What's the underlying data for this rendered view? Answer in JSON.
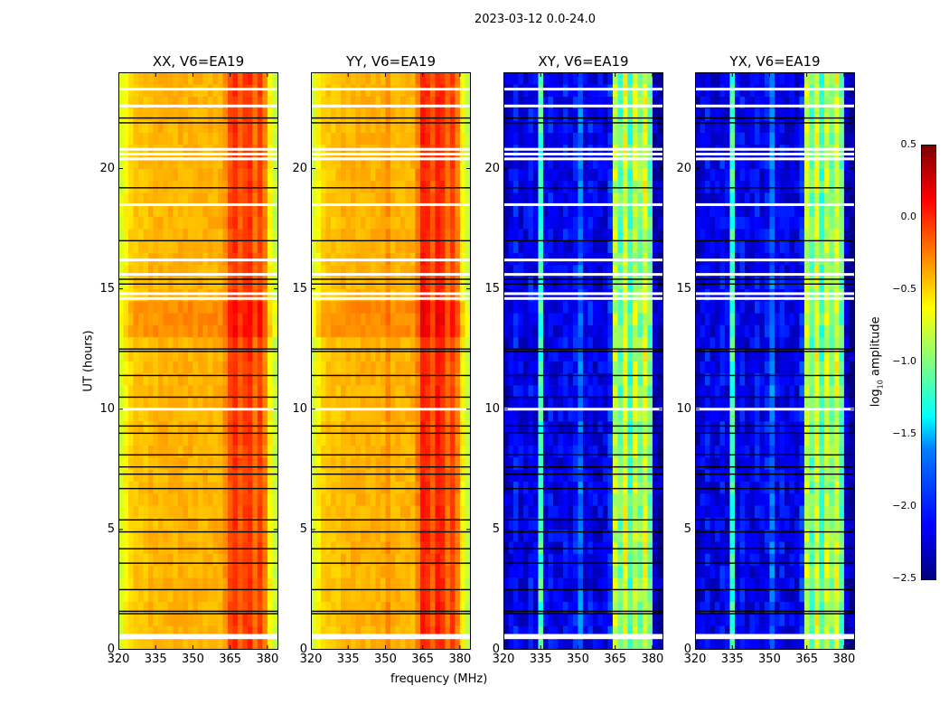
{
  "figure_title": "2023-03-12 0.0-24.0",
  "chart_data": {
    "type": "heatmap",
    "title": "2023-03-12 0.0-24.0",
    "xlabel": "frequency (MHz)",
    "ylabel": "UT (hours)",
    "xlim": [
      320,
      384.4
    ],
    "ylim": [
      0,
      24
    ],
    "xticks": [
      "320",
      "335",
      "350",
      "365",
      "380"
    ],
    "yticks": [
      "0",
      "5",
      "10",
      "15",
      "20"
    ],
    "freq_bin_start": 320,
    "freq_bin_width": 2,
    "time_bin_width": 0.5,
    "colorbar": {
      "label": "log10 amplitude",
      "label_main": "log",
      "label_sub": "10",
      "label_rest": " amplitude",
      "range": [
        -2.5,
        0.5
      ],
      "ticks": [
        "0.5",
        "0.0",
        "−0.5",
        "−1.0",
        "−1.5",
        "−2.0",
        "−2.5"
      ],
      "colormap": "jet"
    },
    "flagged_white_hours": [
      0.5,
      0.6,
      10.0,
      14.6,
      14.8,
      15.6,
      16.2,
      18.5,
      20.4,
      20.6,
      20.8,
      22.6,
      23.3
    ],
    "black_line_hours": [
      1.5,
      1.6,
      2.5,
      3.6,
      4.2,
      4.9,
      5.4,
      6.7,
      7.3,
      7.6,
      8.1,
      9.0,
      9.3,
      10.5,
      11.4,
      12.4,
      12.5,
      15.2,
      15.4,
      17.0,
      19.2,
      21.9,
      22.1
    ],
    "panels": [
      {
        "title": "XX, V6=EA19",
        "profile": [
          -0.75,
          -0.6,
          -0.5,
          -0.45,
          -0.45,
          -0.45,
          -0.4,
          -0.42,
          -0.4,
          -0.4,
          -0.4,
          -0.4,
          -0.4,
          -0.4,
          -0.4,
          -0.4,
          -0.4,
          -0.4,
          -0.4,
          -0.4,
          -0.4,
          -0.3,
          -0.1,
          0.0,
          -0.15,
          -0.05,
          0.0,
          -0.2,
          -0.05,
          -0.25,
          -0.6,
          -0.8
        ]
      },
      {
        "title": "YY, V6=EA19",
        "profile": [
          -0.75,
          -0.6,
          -0.5,
          -0.45,
          -0.45,
          -0.45,
          -0.4,
          -0.42,
          -0.4,
          -0.4,
          -0.4,
          -0.4,
          -0.4,
          -0.4,
          -0.4,
          -0.3,
          -0.4,
          -0.4,
          -0.4,
          -0.4,
          -0.4,
          -0.25,
          0.05,
          0.0,
          -0.15,
          0.05,
          0.0,
          -0.2,
          -0.05,
          -0.25,
          -0.6,
          -0.8
        ]
      },
      {
        "title": "XY, V6=EA19",
        "profile": [
          -2.3,
          -2.2,
          -2.1,
          -2.2,
          -2.2,
          -2.1,
          -2.2,
          -1.2,
          -2.2,
          -2.1,
          -2.2,
          -2.2,
          -2.1,
          -2.2,
          -2.1,
          -1.8,
          -2.2,
          -2.1,
          -2.2,
          -2.2,
          -2.2,
          -2.0,
          -0.8,
          -1.1,
          -0.7,
          -1.2,
          -0.8,
          -1.0,
          -0.7,
          -1.1,
          -2.3,
          -2.4
        ]
      },
      {
        "title": "YX, V6=EA19",
        "profile": [
          -2.3,
          -2.2,
          -2.1,
          -2.2,
          -2.2,
          -2.1,
          -2.2,
          -1.2,
          -2.2,
          -2.1,
          -2.2,
          -2.2,
          -2.1,
          -2.2,
          -2.1,
          -1.8,
          -2.2,
          -2.1,
          -2.2,
          -2.2,
          -2.2,
          -2.0,
          -0.8,
          -1.1,
          -0.7,
          -1.2,
          -0.8,
          -1.0,
          -0.7,
          -1.1,
          -2.3,
          -2.4
        ]
      }
    ]
  }
}
